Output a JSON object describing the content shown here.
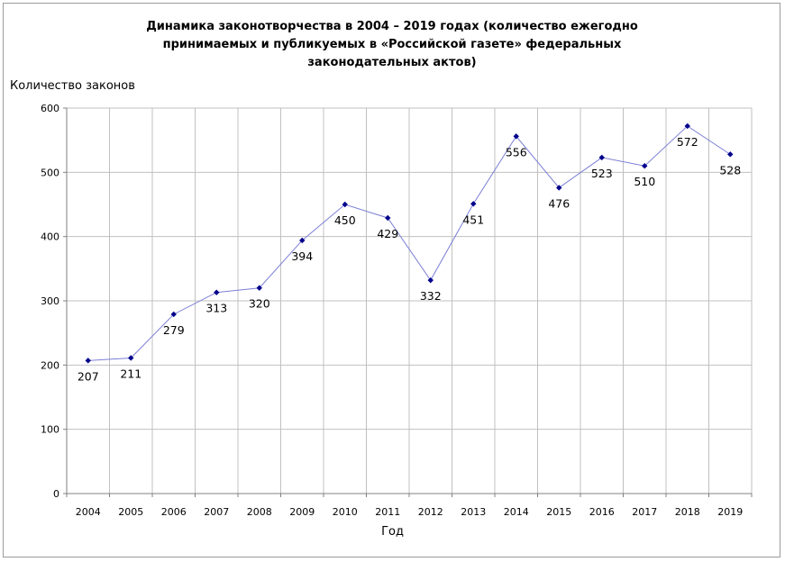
{
  "chart_data": {
    "type": "line",
    "title": "Динамика законотворчества в 2004 – 2019 годах (количество ежегодно принимаемых и публикуемых в «Российской газете» федеральных законодательных актов)",
    "title_lines": [
      "Динамика законотворчества в 2004 – 2019 годах (количество ежегодно",
      "принимаемых и публикуемых в «Российской газете» федеральных",
      "законодательных актов)"
    ],
    "ylabel": "Количество законов",
    "xlabel": "Год",
    "categories": [
      "2004",
      "2005",
      "2006",
      "2007",
      "2008",
      "2009",
      "2010",
      "2011",
      "2012",
      "2013",
      "2014",
      "2015",
      "2016",
      "2017",
      "2018",
      "2019"
    ],
    "series": [
      {
        "values": [
          207,
          211,
          279,
          313,
          320,
          394,
          450,
          429,
          332,
          451,
          556,
          476,
          523,
          510,
          572,
          528
        ],
        "color": "#7b7fd6",
        "marker_color": "#00008b"
      }
    ],
    "ylim": [
      0,
      600
    ],
    "yticks": [
      0,
      100,
      200,
      300,
      400,
      500,
      600
    ],
    "grid": true,
    "legend": "none",
    "data_label_position": [
      "below",
      "below",
      "below",
      "below",
      "below",
      "below",
      "below",
      "below",
      "below",
      "below",
      "below",
      "below",
      "below",
      "below",
      "below",
      "below"
    ]
  }
}
